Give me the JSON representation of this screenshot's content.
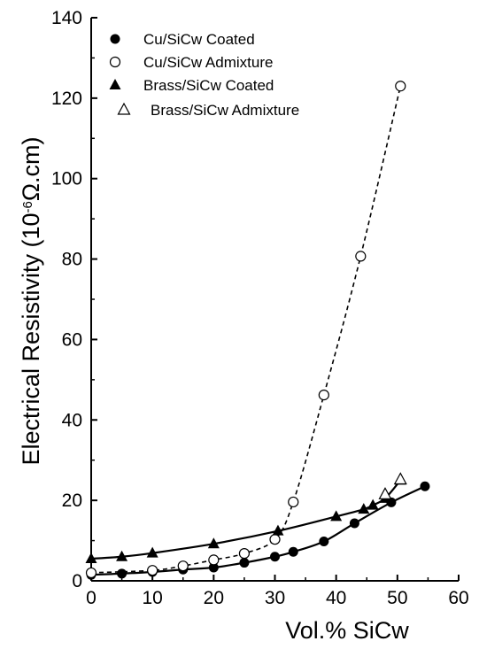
{
  "chart_data": {
    "type": "line",
    "title": "",
    "xlabel": "Vol.% SiCw",
    "ylabel_prefix": "Electrical Resistivity (10",
    "ylabel_exp": "-6",
    "ylabel_suffix": "Ω.cm)",
    "xlim": [
      0,
      60
    ],
    "ylim": [
      0,
      140
    ],
    "x_ticks": [
      "0",
      "10",
      "20",
      "30",
      "40",
      "50",
      "60"
    ],
    "y_ticks": [
      "0",
      "20",
      "40",
      "60",
      "80",
      "100",
      "120",
      "140"
    ],
    "grid": false,
    "legend_position": "top-left",
    "series": [
      {
        "name": "Cu/SiCw Coated",
        "marker": "filled-circle",
        "line": "solid",
        "points": [
          [
            0,
            1.5
          ],
          [
            5,
            1.8
          ],
          [
            10,
            2.2
          ],
          [
            15,
            2.8
          ],
          [
            20,
            3.3
          ],
          [
            25,
            4.5
          ],
          [
            30,
            6
          ],
          [
            33,
            7.2
          ],
          [
            38,
            9.8
          ],
          [
            43,
            14.3
          ],
          [
            49,
            19.5
          ],
          [
            54.5,
            23.5
          ]
        ]
      },
      {
        "name": "Cu/SiCw Admixture",
        "marker": "open-circle",
        "line": "dashed",
        "points": [
          [
            0,
            2
          ],
          [
            10,
            2.6
          ],
          [
            15,
            3.7
          ],
          [
            20,
            5.2
          ],
          [
            25,
            6.8
          ],
          [
            30,
            10.3
          ],
          [
            33,
            19.6
          ],
          [
            38,
            46.2
          ],
          [
            44,
            80.7
          ],
          [
            50.5,
            123
          ]
        ]
      },
      {
        "name": "Brass/SiCw Coated",
        "marker": "filled-triangle",
        "line": "solid",
        "points": [
          [
            0,
            5.5
          ],
          [
            5,
            6
          ],
          [
            10,
            6.9
          ],
          [
            20,
            9.2
          ],
          [
            30.5,
            12.4
          ],
          [
            40,
            16
          ],
          [
            44.5,
            17.8
          ],
          [
            46,
            18.8
          ],
          [
            48,
            20.5
          ],
          [
            50.5,
            25
          ]
        ]
      },
      {
        "name": "Brass/SiCw Admixture",
        "marker": "open-triangle",
        "line": "none",
        "points": [
          [
            48,
            21.5
          ],
          [
            50.5,
            25.2
          ]
        ]
      }
    ]
  }
}
